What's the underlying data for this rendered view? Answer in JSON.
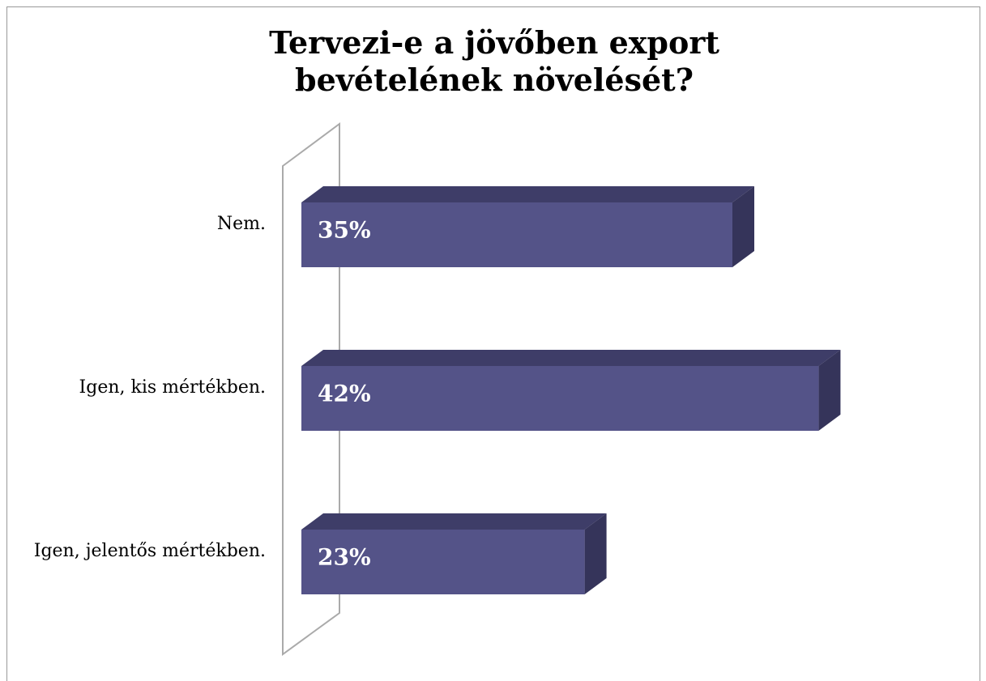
{
  "chart_data": {
    "type": "bar3d_horizontal",
    "title": "Tervezi-e a jövőben export bevételének növelését?",
    "categories": [
      "Nem.",
      "Igen, kis mértékben.",
      "Igen, jelentős mértékben."
    ],
    "values": [
      35,
      42,
      23
    ],
    "value_labels": [
      "35%",
      "42%",
      "23%"
    ],
    "color": "#545388"
  }
}
